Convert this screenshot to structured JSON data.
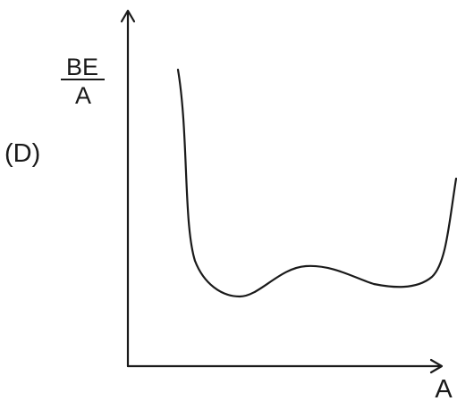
{
  "figure": {
    "panel_label": "(D)",
    "y_axis_label": {
      "numerator": "BE",
      "denominator": "A"
    },
    "x_axis_label": "A"
  },
  "colors": {
    "ink": "#1a1a1a",
    "background": "#ffffff"
  }
}
